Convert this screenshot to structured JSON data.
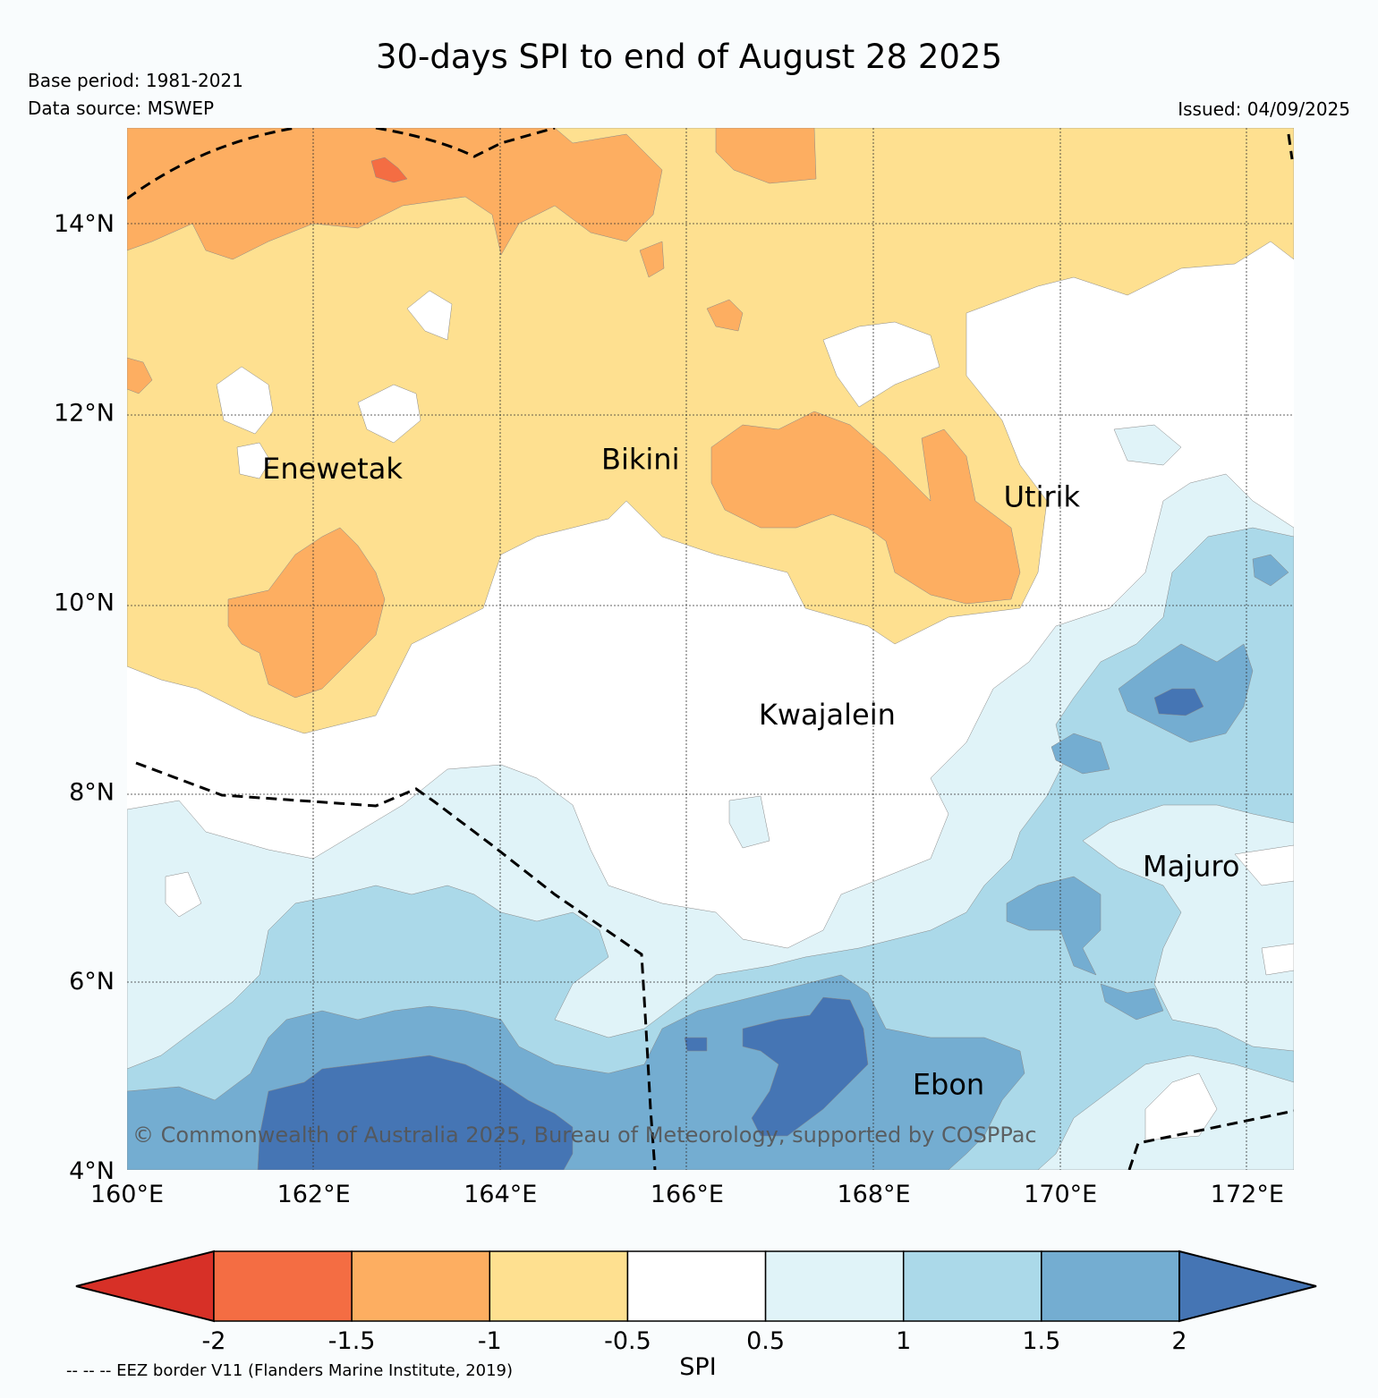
{
  "title": "30-days SPI to end of August 28 2025",
  "base_period": "Base period: 1981-2021",
  "data_source": "Data source: MSWEP",
  "issued": "Issued: 04/09/2025",
  "copyright": "© Commonwealth of Australia 2025, Bureau of Meteorology, supported by COSPPac",
  "eez_note": "-- -- -- EEZ border V11 (Flanders Marine Institute, 2019)",
  "colorbar": {
    "label": "SPI",
    "ticks": [
      "-2",
      "-1.5",
      "-1",
      "-0.5",
      "0.5",
      "1",
      "1.5",
      "2"
    ],
    "colors": [
      "#d73027",
      "#f46d43",
      "#fdae61",
      "#fee090",
      "#ffffff",
      "#e0f3f8",
      "#abd9e9",
      "#74add1",
      "#4575b4"
    ]
  },
  "axes": {
    "lat_ticks": [
      "4°N",
      "6°N",
      "8°N",
      "10°N",
      "12°N",
      "14°N"
    ],
    "lon_ticks": [
      "160°E",
      "162°E",
      "164°E",
      "166°E",
      "168°E",
      "170°E",
      "172°E"
    ],
    "lon_range": [
      160,
      172.5
    ],
    "lat_range": [
      4,
      15
    ]
  },
  "places": [
    {
      "name": "Enewetak",
      "lon": 162.2,
      "lat": 11.3
    },
    {
      "name": "Bikini",
      "lon": 165.5,
      "lat": 11.4
    },
    {
      "name": "Utirik",
      "lon": 169.8,
      "lat": 11.0
    },
    {
      "name": "Kwajalein",
      "lon": 167.5,
      "lat": 8.7
    },
    {
      "name": "Majuro",
      "lon": 171.4,
      "lat": 7.1
    },
    {
      "name": "Ebon",
      "lon": 168.8,
      "lat": 4.8
    }
  ]
}
